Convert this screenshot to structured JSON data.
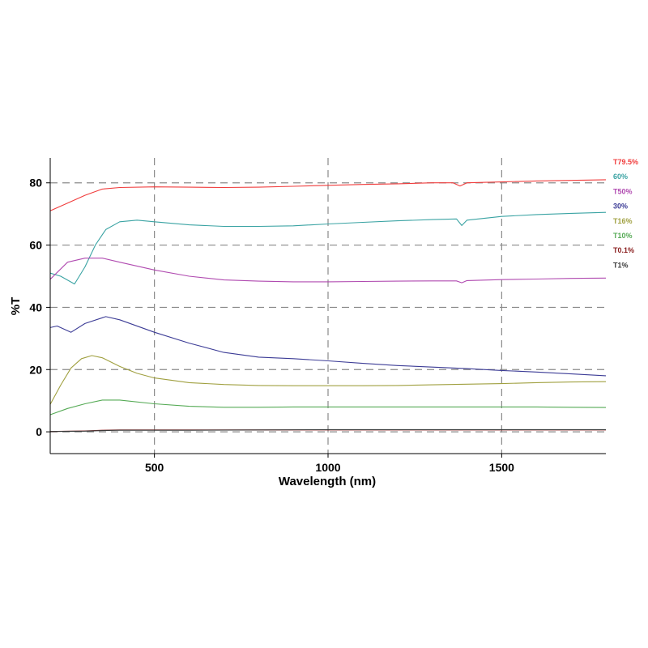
{
  "chart_data": {
    "type": "line",
    "xlabel": "Wavelength (nm)",
    "ylabel": "%T",
    "xlim": [
      200,
      1800
    ],
    "ylim": [
      -7,
      88
    ],
    "xticks": [
      500,
      1000,
      1500
    ],
    "yticks": [
      0,
      20,
      40,
      60,
      80
    ],
    "grid": "dashed",
    "legend_placement": "right",
    "series": [
      {
        "name": "T79.5%",
        "color": "#f03c3c",
        "x": [
          200,
          250,
          300,
          350,
          400,
          500,
          600,
          700,
          800,
          900,
          1000,
          1100,
          1200,
          1300,
          1360,
          1380,
          1400,
          1500,
          1600,
          1700,
          1800
        ],
        "y": [
          71,
          73.5,
          76,
          78,
          78.5,
          78.7,
          78.6,
          78.5,
          78.6,
          78.9,
          79.2,
          79.5,
          79.7,
          80,
          80,
          79,
          80,
          80.3,
          80.6,
          80.8,
          81
        ]
      },
      {
        "name": "60%",
        "color": "#3aa3a3",
        "x": [
          200,
          230,
          270,
          300,
          330,
          360,
          400,
          450,
          500,
          600,
          700,
          800,
          900,
          1000,
          1100,
          1200,
          1300,
          1370,
          1385,
          1400,
          1500,
          1600,
          1700,
          1800
        ],
        "y": [
          51,
          50,
          47.5,
          53,
          60,
          65,
          67.5,
          68,
          67.5,
          66.5,
          66,
          66,
          66.2,
          66.8,
          67.3,
          67.8,
          68.2,
          68.4,
          66.3,
          68,
          69.2,
          69.8,
          70.2,
          70.5
        ]
      },
      {
        "name": "T50%",
        "color": "#b04ab0",
        "x": [
          200,
          250,
          300,
          350,
          400,
          500,
          600,
          700,
          800,
          900,
          1000,
          1100,
          1200,
          1300,
          1370,
          1385,
          1400,
          1500,
          1600,
          1700,
          1800
        ],
        "y": [
          49,
          54.5,
          55.8,
          55.8,
          54.5,
          52,
          50,
          48.8,
          48.4,
          48.2,
          48.2,
          48.3,
          48.4,
          48.5,
          48.5,
          47.9,
          48.6,
          48.9,
          49.1,
          49.3,
          49.4
        ]
      },
      {
        "name": "30%",
        "color": "#3c3c96",
        "x": [
          200,
          220,
          260,
          300,
          360,
          400,
          500,
          600,
          700,
          800,
          900,
          1000,
          1100,
          1200,
          1300,
          1400,
          1500,
          1600,
          1700,
          1800
        ],
        "y": [
          33.5,
          34,
          32,
          34.8,
          37,
          36,
          32,
          28.5,
          25.5,
          24,
          23.5,
          22.8,
          22,
          21.3,
          20.8,
          20.3,
          19.7,
          19.2,
          18.6,
          18
        ]
      },
      {
        "name": "T16%",
        "color": "#a0a040",
        "x": [
          200,
          230,
          260,
          290,
          320,
          350,
          400,
          450,
          500,
          600,
          700,
          800,
          900,
          1000,
          1100,
          1200,
          1300,
          1400,
          1500,
          1600,
          1700,
          1800
        ],
        "y": [
          8.8,
          15,
          20.5,
          23.5,
          24.5,
          23.8,
          21,
          18.8,
          17.3,
          15.8,
          15.2,
          14.9,
          14.8,
          14.8,
          14.8,
          14.9,
          15.1,
          15.3,
          15.5,
          15.8,
          16,
          16.1
        ]
      },
      {
        "name": "T10%",
        "color": "#55aa55",
        "x": [
          200,
          250,
          300,
          350,
          400,
          500,
          600,
          700,
          800,
          900,
          1000,
          1100,
          1200,
          1300,
          1400,
          1500,
          1600,
          1700,
          1800
        ],
        "y": [
          5.5,
          7.5,
          9,
          10.2,
          10.2,
          9,
          8.2,
          7.9,
          7.9,
          8,
          8,
          8,
          8,
          8,
          8,
          8,
          8,
          7.9,
          7.8
        ]
      },
      {
        "name": "T0.1%",
        "color": "#8b2020",
        "x": [
          200,
          300,
          350,
          400,
          600,
          800,
          1000,
          1200,
          1400,
          1600,
          1800
        ],
        "y": [
          0.1,
          0.3,
          0.5,
          0.6,
          0.6,
          0.6,
          0.6,
          0.6,
          0.6,
          0.6,
          0.6
        ]
      },
      {
        "name": "T1%",
        "color": "#3a3a3a",
        "x": [
          200,
          300,
          350,
          400,
          600,
          800,
          1000,
          1200,
          1400,
          1600,
          1800
        ],
        "y": [
          0.1,
          0.2,
          0.4,
          0.5,
          0.5,
          0.6,
          0.7,
          0.7,
          0.7,
          0.7,
          0.7
        ]
      }
    ]
  }
}
